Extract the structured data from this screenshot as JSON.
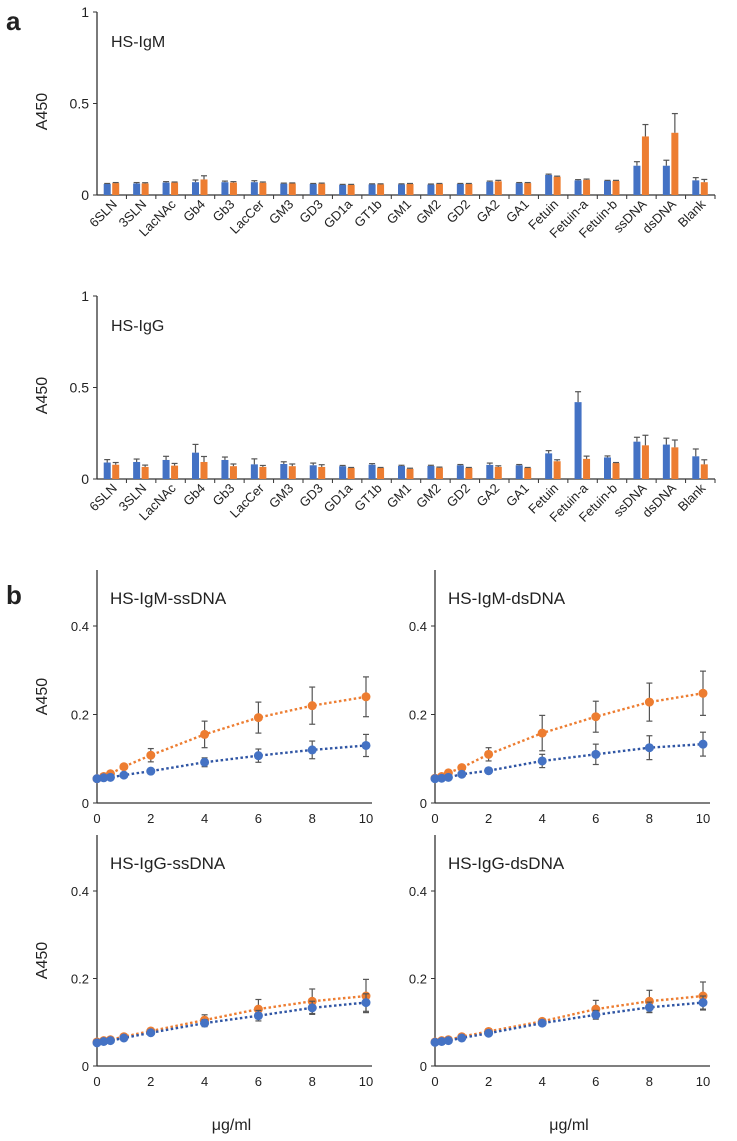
{
  "colors": {
    "blue": "#4472C4",
    "orange": "#ED7D31",
    "axis": "#333333",
    "error_bar": "#555555"
  },
  "panel_labels": [
    "a",
    "b"
  ],
  "chart_data": [
    {
      "type": "bar",
      "title": "HS-IgM",
      "ylabel": "A450",
      "ylim": [
        0,
        1
      ],
      "yticks": [
        "0",
        "0.5",
        "1"
      ],
      "grid": false,
      "categories": [
        "6SLN",
        "3SLN",
        "LacNAc",
        "Gb4",
        "Gb3",
        "LacCer",
        "GM3",
        "GD3",
        "GD1a",
        "GT1b",
        "GM1",
        "GM2",
        "GD2",
        "GA2",
        "GA1",
        "Fetuin",
        "Fetuin-a",
        "Fetuin-b",
        "ssDNA",
        "dsDNA",
        "Blank"
      ],
      "series": [
        {
          "color": "#4472C4",
          "values": [
            0.06,
            0.063,
            0.068,
            0.07,
            0.07,
            0.07,
            0.062,
            0.06,
            0.055,
            0.058,
            0.058,
            0.057,
            0.06,
            0.072,
            0.065,
            0.11,
            0.08,
            0.077,
            0.16,
            0.16,
            0.08
          ],
          "errors": [
            0.003,
            0.005,
            0.005,
            0.012,
            0.006,
            0.008,
            0.003,
            0.003,
            0.003,
            0.003,
            0.003,
            0.003,
            0.003,
            0.004,
            0.003,
            0.004,
            0.004,
            0.003,
            0.022,
            0.03,
            0.015
          ]
        },
        {
          "color": "#ED7D31",
          "values": [
            0.065,
            0.063,
            0.068,
            0.085,
            0.068,
            0.067,
            0.063,
            0.062,
            0.055,
            0.058,
            0.06,
            0.06,
            0.06,
            0.075,
            0.065,
            0.1,
            0.083,
            0.077,
            0.32,
            0.34,
            0.07
          ],
          "errors": [
            0.003,
            0.004,
            0.003,
            0.02,
            0.005,
            0.004,
            0.003,
            0.003,
            0.003,
            0.003,
            0.003,
            0.003,
            0.003,
            0.005,
            0.003,
            0.003,
            0.004,
            0.003,
            0.065,
            0.105,
            0.015
          ]
        }
      ]
    },
    {
      "type": "bar",
      "title": "HS-IgG",
      "ylabel": "A450",
      "ylim": [
        0,
        1
      ],
      "yticks": [
        "0",
        "0.5",
        "1"
      ],
      "grid": false,
      "categories": [
        "6SLN",
        "3SLN",
        "LacNAc",
        "Gb4",
        "Gb3",
        "LacCer",
        "GM3",
        "GD3",
        "GD1a",
        "GT1b",
        "GM1",
        "GM2",
        "GD2",
        "GA2",
        "GA1",
        "Fetuin",
        "Fetuin-a",
        "Fetuin-b",
        "ssDNA",
        "dsDNA",
        "Blank"
      ],
      "series": [
        {
          "color": "#4472C4",
          "values": [
            0.09,
            0.093,
            0.104,
            0.144,
            0.104,
            0.08,
            0.082,
            0.075,
            0.07,
            0.078,
            0.071,
            0.071,
            0.075,
            0.077,
            0.075,
            0.14,
            0.42,
            0.118,
            0.204,
            0.188,
            0.124
          ],
          "errors": [
            0.016,
            0.016,
            0.02,
            0.045,
            0.016,
            0.03,
            0.012,
            0.012,
            0.004,
            0.006,
            0.004,
            0.004,
            0.004,
            0.01,
            0.004,
            0.015,
            0.057,
            0.008,
            0.024,
            0.035,
            0.04
          ]
        },
        {
          "color": "#ED7D31",
          "values": [
            0.078,
            0.066,
            0.073,
            0.093,
            0.07,
            0.066,
            0.07,
            0.066,
            0.06,
            0.06,
            0.056,
            0.062,
            0.06,
            0.066,
            0.06,
            0.097,
            0.11,
            0.087,
            0.184,
            0.173,
            0.08
          ],
          "errors": [
            0.012,
            0.01,
            0.012,
            0.03,
            0.012,
            0.008,
            0.012,
            0.012,
            0.003,
            0.003,
            0.003,
            0.003,
            0.003,
            0.006,
            0.003,
            0.008,
            0.015,
            0.003,
            0.055,
            0.04,
            0.025
          ]
        }
      ]
    },
    {
      "type": "line",
      "title": "HS-IgM-ssDNA",
      "ylabel": "A450",
      "xlabel": "",
      "ylim": [
        0,
        0.5
      ],
      "xlim": [
        0,
        10
      ],
      "yticks": [
        "0",
        "0.2",
        "0.4"
      ],
      "xticks": [
        "0",
        "2",
        "4",
        "6",
        "8",
        "10"
      ],
      "x": [
        0,
        0.25,
        0.5,
        1,
        2,
        4,
        6,
        8,
        10
      ],
      "series": [
        {
          "color": "#ED7D31",
          "values": [
            0.055,
            0.06,
            0.066,
            0.082,
            0.108,
            0.155,
            0.193,
            0.22,
            0.24
          ],
          "errors": [
            0.003,
            0.003,
            0.004,
            0.005,
            0.015,
            0.03,
            0.035,
            0.042,
            0.045
          ]
        },
        {
          "color": "#4472C4",
          "values": [
            0.055,
            0.057,
            0.058,
            0.063,
            0.072,
            0.092,
            0.107,
            0.12,
            0.13
          ],
          "errors": [
            0.003,
            0.003,
            0.003,
            0.004,
            0.006,
            0.01,
            0.015,
            0.02,
            0.025
          ]
        }
      ]
    },
    {
      "type": "line",
      "title": "HS-IgM-dsDNA",
      "ylabel": "",
      "xlabel": "",
      "ylim": [
        0,
        0.5
      ],
      "xlim": [
        0,
        10
      ],
      "yticks": [
        "0",
        "0.2",
        "0.4"
      ],
      "xticks": [
        "0",
        "2",
        "4",
        "6",
        "8",
        "10"
      ],
      "x": [
        0,
        0.25,
        0.5,
        1,
        2,
        4,
        6,
        8,
        10
      ],
      "series": [
        {
          "color": "#ED7D31",
          "values": [
            0.056,
            0.06,
            0.068,
            0.08,
            0.11,
            0.158,
            0.195,
            0.228,
            0.248
          ],
          "errors": [
            0.003,
            0.003,
            0.004,
            0.005,
            0.015,
            0.04,
            0.035,
            0.043,
            0.05
          ]
        },
        {
          "color": "#4472C4",
          "values": [
            0.055,
            0.056,
            0.058,
            0.065,
            0.073,
            0.095,
            0.11,
            0.125,
            0.133
          ],
          "errors": [
            0.003,
            0.003,
            0.003,
            0.004,
            0.006,
            0.015,
            0.023,
            0.027,
            0.027
          ]
        }
      ]
    },
    {
      "type": "line",
      "title": "HS-IgG-ssDNA",
      "ylabel": "A450",
      "xlabel": "μg/ml",
      "ylim": [
        0,
        0.5
      ],
      "xlim": [
        0,
        10
      ],
      "yticks": [
        "0",
        "0.2",
        "0.4"
      ],
      "xticks": [
        "0",
        "2",
        "4",
        "6",
        "8",
        "10"
      ],
      "x": [
        0,
        0.25,
        0.5,
        1,
        2,
        4,
        6,
        8,
        10
      ],
      "series": [
        {
          "color": "#ED7D31",
          "values": [
            0.055,
            0.058,
            0.06,
            0.067,
            0.08,
            0.105,
            0.13,
            0.148,
            0.16
          ],
          "errors": [
            0.003,
            0.003,
            0.003,
            0.004,
            0.006,
            0.012,
            0.022,
            0.028,
            0.038
          ]
        },
        {
          "color": "#4472C4",
          "values": [
            0.053,
            0.056,
            0.058,
            0.064,
            0.076,
            0.098,
            0.115,
            0.133,
            0.145
          ],
          "errors": [
            0.003,
            0.003,
            0.003,
            0.003,
            0.005,
            0.008,
            0.012,
            0.015,
            0.02
          ]
        }
      ]
    },
    {
      "type": "line",
      "title": "HS-IgG-dsDNA",
      "ylabel": "",
      "xlabel": "μg/ml",
      "ylim": [
        0,
        0.5
      ],
      "xlim": [
        0,
        10
      ],
      "yticks": [
        "0",
        "0.2",
        "0.4"
      ],
      "xticks": [
        "0",
        "2",
        "4",
        "6",
        "8",
        "10"
      ],
      "x": [
        0,
        0.25,
        0.5,
        1,
        2,
        4,
        6,
        8,
        10
      ],
      "series": [
        {
          "color": "#ED7D31",
          "values": [
            0.055,
            0.058,
            0.06,
            0.067,
            0.079,
            0.102,
            0.13,
            0.148,
            0.16
          ],
          "errors": [
            0.003,
            0.003,
            0.003,
            0.004,
            0.005,
            0.006,
            0.02,
            0.025,
            0.032
          ]
        },
        {
          "color": "#4472C4",
          "values": [
            0.054,
            0.056,
            0.058,
            0.064,
            0.075,
            0.098,
            0.117,
            0.134,
            0.145
          ],
          "errors": [
            0.003,
            0.003,
            0.003,
            0.003,
            0.004,
            0.006,
            0.01,
            0.012,
            0.015
          ]
        }
      ]
    }
  ]
}
